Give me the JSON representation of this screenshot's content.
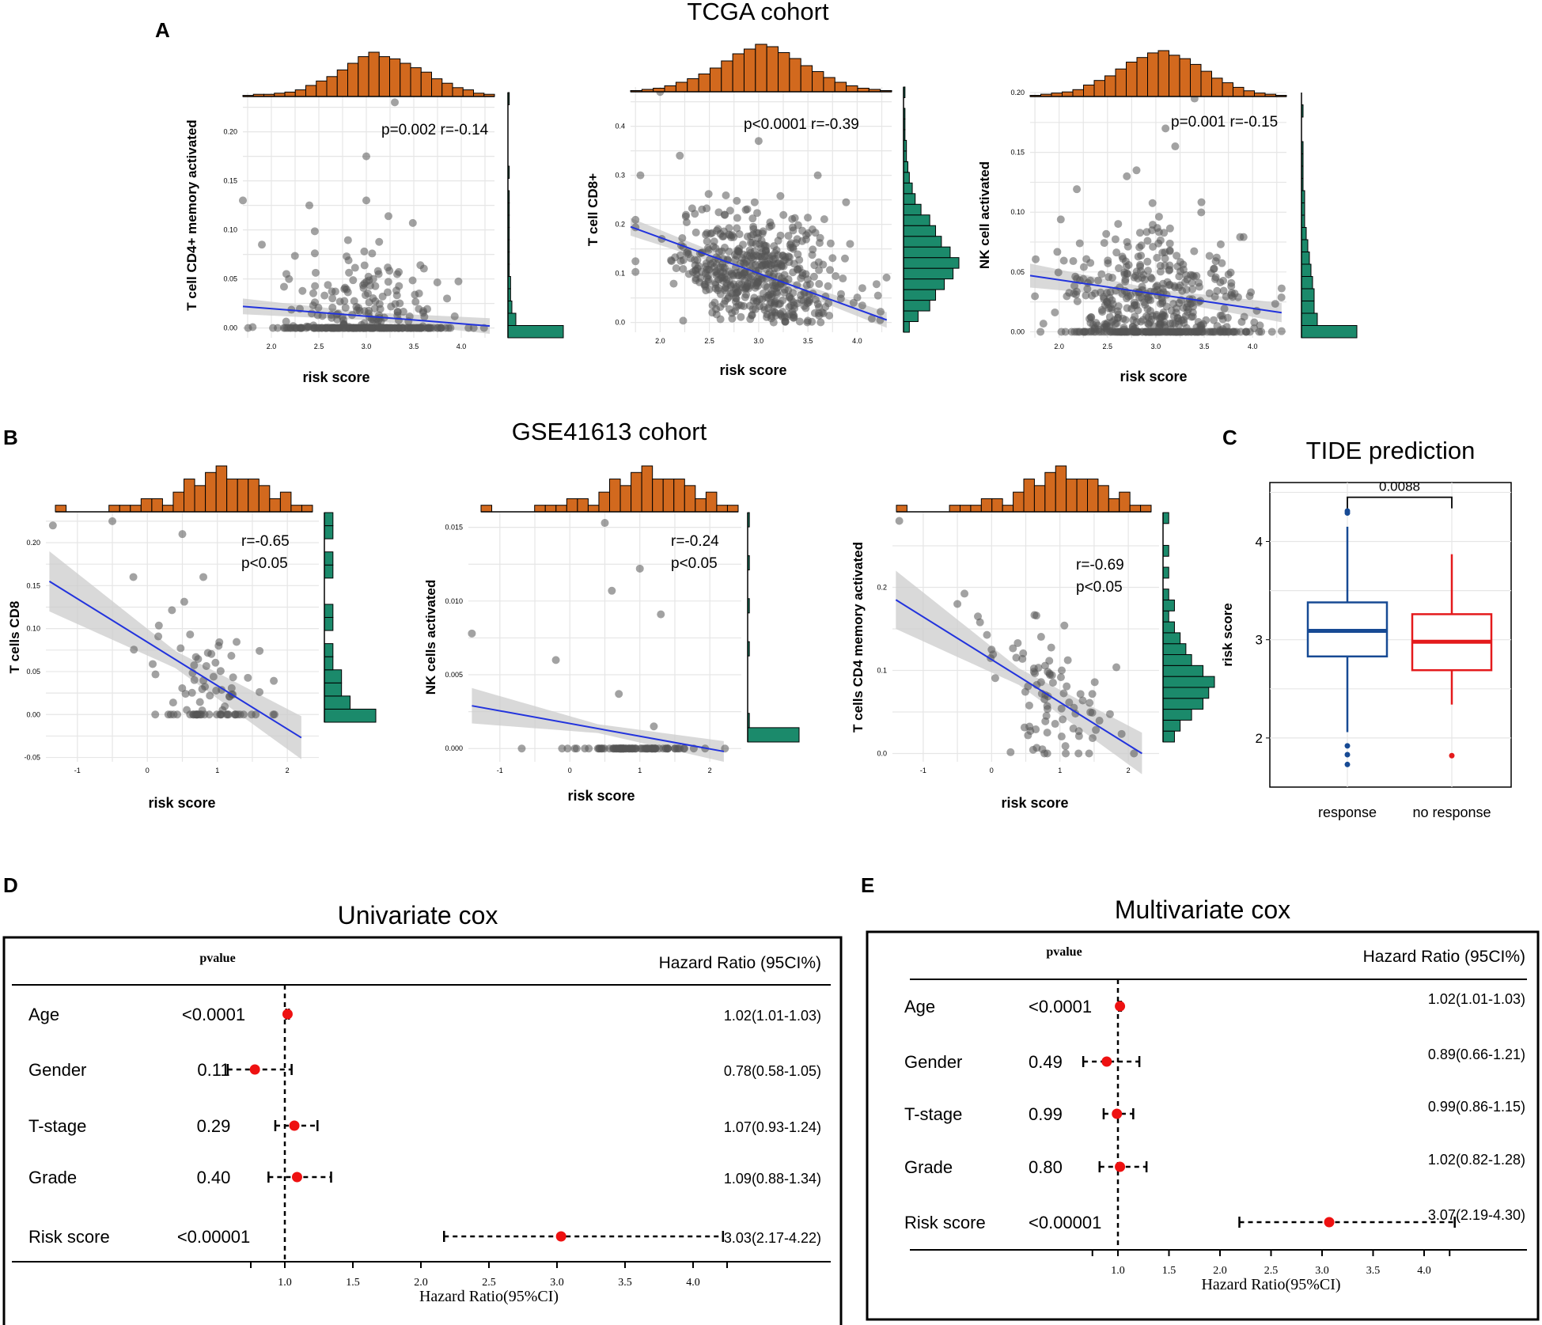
{
  "colors": {
    "hist_top": "#d2691e",
    "hist_right": "#1b8a6b",
    "point": "#555555",
    "fit": "#2233dd",
    "ci": "#cccccc",
    "resp": "#174a94",
    "noresp": "#e41a1c",
    "forest_pt": "#ee1111"
  },
  "panels": {
    "A": "A",
    "B": "B",
    "C": "C",
    "D": "D",
    "E": "E"
  },
  "titles": {
    "tcga": "TCGA cohort",
    "gse": "GSE41613 cohort",
    "tide": "TIDE prediction",
    "uni": "Univariate cox",
    "multi": "Multivariate cox"
  },
  "chart_data": [
    {
      "id": "a1",
      "type": "scatter",
      "cohort": "TCGA",
      "xlabel": "risk score",
      "ylabel": "T cell CD4+ memory activated",
      "stat": "p=0.002  r=-0.14",
      "xlim": [
        1.7,
        4.35
      ],
      "ylim": [
        -0.01,
        0.24
      ],
      "xticks": [
        "2.0",
        "2.5",
        "3.0",
        "3.5",
        "4.0"
      ],
      "yticks": [
        "0.00",
        "0.05",
        "0.10",
        "0.15",
        "0.20"
      ],
      "fit": [
        [
          1.7,
          0.022
        ],
        [
          4.3,
          0.002
        ]
      ],
      "ci_half": [
        0.008,
        0.004,
        0.008
      ],
      "n": 320,
      "xcenter": 3.0,
      "xspread": 0.45,
      "ybase": 0.0,
      "ynoise": 0.04,
      "zero_frac": 0.55,
      "outliers": [
        [
          1.7,
          0.13
        ],
        [
          1.9,
          0.085
        ],
        [
          2.4,
          0.125
        ],
        [
          3.0,
          0.175
        ],
        [
          3.3,
          0.23
        ],
        [
          3.0,
          0.13
        ]
      ],
      "top_hist": [
        1,
        2,
        2,
        3,
        4,
        6,
        10,
        14,
        18,
        24,
        30,
        36,
        40,
        36,
        34,
        30,
        26,
        22,
        16,
        12,
        8,
        6,
        3,
        2
      ],
      "right_hist": [
        42,
        6,
        3,
        2,
        2,
        1,
        1,
        1,
        1,
        1,
        1,
        1,
        0,
        1,
        0,
        0,
        0,
        0,
        0,
        1
      ]
    },
    {
      "id": "a2",
      "type": "scatter",
      "cohort": "TCGA",
      "xlabel": "risk score",
      "ylabel": "T cell CD8+",
      "stat": "p<0.0001  r=-0.39",
      "xlim": [
        1.7,
        4.35
      ],
      "ylim": [
        -0.02,
        0.48
      ],
      "xticks": [
        "2.0",
        "2.5",
        "3.0",
        "3.5",
        "4.0"
      ],
      "yticks": [
        "0.0",
        "0.1",
        "0.2",
        "0.3",
        "0.4"
      ],
      "fit": [
        [
          1.7,
          0.195
        ],
        [
          4.3,
          0.005
        ]
      ],
      "ci_half": [
        0.018,
        0.007,
        0.016
      ],
      "n": 520,
      "xcenter": 3.0,
      "xspread": 0.42,
      "ybase": 0.1,
      "ynoise": 0.065,
      "zero_frac": 0.0,
      "outliers": [
        [
          2.0,
          0.47
        ],
        [
          2.2,
          0.34
        ],
        [
          1.8,
          0.3
        ],
        [
          3.0,
          0.37
        ],
        [
          3.6,
          0.3
        ]
      ],
      "top_hist": [
        1,
        2,
        3,
        5,
        8,
        11,
        15,
        20,
        26,
        32,
        36,
        40,
        38,
        33,
        28,
        22,
        17,
        12,
        8,
        5,
        3,
        2,
        1
      ],
      "right_hist": [
        4,
        10,
        18,
        22,
        28,
        34,
        38,
        32,
        26,
        22,
        18,
        12,
        8,
        6,
        4,
        3,
        2,
        2,
        1,
        1,
        1,
        0,
        1
      ]
    },
    {
      "id": "a3",
      "type": "scatter",
      "cohort": "TCGA",
      "xlabel": "risk score",
      "ylabel": "NK cell activated",
      "stat": "p=0.001  r=-0.15",
      "xlim": [
        1.7,
        4.35
      ],
      "ylim": [
        -0.005,
        0.2
      ],
      "xticks": [
        "2.0",
        "2.5",
        "3.0",
        "3.5",
        "4.0"
      ],
      "yticks": [
        "0.00",
        "0.05",
        "0.10",
        "0.15",
        "0.20"
      ],
      "fit": [
        [
          1.7,
          0.047
        ],
        [
          4.3,
          0.016
        ]
      ],
      "ci_half": [
        0.01,
        0.004,
        0.008
      ],
      "n": 520,
      "xcenter": 3.0,
      "xspread": 0.45,
      "ybase": 0.025,
      "ynoise": 0.03,
      "zero_frac": 0.3,
      "outliers": [
        [
          3.4,
          0.195
        ],
        [
          3.1,
          0.17
        ],
        [
          3.2,
          0.155
        ],
        [
          2.8,
          0.135
        ],
        [
          2.7,
          0.13
        ]
      ],
      "top_hist": [
        1,
        2,
        3,
        4,
        6,
        10,
        14,
        18,
        24,
        30,
        34,
        38,
        40,
        36,
        33,
        28,
        22,
        16,
        12,
        8,
        5,
        3,
        2,
        1
      ],
      "right_hist": [
        35,
        10,
        8,
        8,
        7,
        6,
        5,
        4,
        3,
        2,
        2,
        2,
        1,
        1,
        1,
        1,
        0,
        0,
        1,
        0
      ]
    },
    {
      "id": "b1",
      "type": "scatter",
      "cohort": "GSE41613",
      "xlabel": "risk score",
      "ylabel": "T cells CD8",
      "stat": "r=-0.65\np<0.05",
      "xlim": [
        -1.45,
        2.45
      ],
      "ylim": [
        -0.055,
        0.235
      ],
      "xticks": [
        "-1",
        "0",
        "1",
        "2"
      ],
      "yticks": [
        "-0.05",
        "0.00",
        "0.05",
        "0.10",
        "0.15",
        "0.20"
      ],
      "fit": [
        [
          -1.4,
          0.155
        ],
        [
          2.2,
          -0.027
        ]
      ],
      "ci_half": [
        0.035,
        0.01,
        0.025
      ],
      "n": 85,
      "xcenter": 0.9,
      "xspread": 0.45,
      "ybase": 0.02,
      "ynoise": 0.03,
      "zero_frac": 0.35,
      "slope": -0.045,
      "outliers": [
        [
          -1.35,
          0.22
        ],
        [
          -0.5,
          0.225
        ],
        [
          0.5,
          0.21
        ],
        [
          -0.2,
          0.16
        ],
        [
          0.8,
          0.16
        ]
      ],
      "top_hist": [
        1,
        0,
        0,
        0,
        0,
        1,
        1,
        1,
        2,
        2,
        1,
        3,
        5,
        4,
        6,
        7,
        5,
        5,
        5,
        4,
        2,
        3,
        1,
        1
      ],
      "right_hist": [
        6,
        3,
        2,
        2,
        1,
        1,
        0,
        1,
        1,
        0,
        0,
        1,
        1,
        0,
        1,
        1
      ]
    },
    {
      "id": "b2",
      "type": "scatter",
      "cohort": "GSE41613",
      "xlabel": "risk score",
      "ylabel": "NK cells activated",
      "stat": "r=-0.24\np<0.05",
      "xlim": [
        -1.45,
        2.45
      ],
      "ylim": [
        -0.0009,
        0.016
      ],
      "xticks": [
        "-1",
        "0",
        "1",
        "2"
      ],
      "yticks": [
        "0.000",
        "0.005",
        "0.010",
        "0.015"
      ],
      "fit": [
        [
          -1.4,
          0.0029
        ],
        [
          2.2,
          -0.0002
        ]
      ],
      "ci_half": [
        0.0012,
        0.0003,
        0.0007
      ],
      "n": 90,
      "xcenter": 0.9,
      "xspread": 0.45,
      "ybase": 0.0,
      "ynoise": 0.0,
      "zero_frac": 1.0,
      "outliers": [
        [
          0.5,
          0.0153
        ],
        [
          1.0,
          0.0122
        ],
        [
          0.6,
          0.0107
        ],
        [
          1.3,
          0.0091
        ],
        [
          -1.4,
          0.0078
        ],
        [
          -0.2,
          0.006
        ],
        [
          0.7,
          0.0037
        ],
        [
          1.2,
          0.0015
        ]
      ],
      "top_hist": [
        1,
        0,
        0,
        0,
        0,
        1,
        1,
        1,
        2,
        2,
        1,
        3,
        5,
        4,
        6,
        7,
        5,
        5,
        5,
        4,
        2,
        3,
        1,
        1
      ],
      "right_hist": [
        30,
        1,
        0,
        0,
        0,
        0,
        1,
        0,
        0,
        1,
        0,
        0,
        1,
        0,
        0,
        1
      ]
    },
    {
      "id": "b3",
      "type": "scatter",
      "cohort": "GSE41613",
      "xlabel": "risk score",
      "ylabel": "T cells CD4 memory activated",
      "stat": "r=-0.69\np<0.05",
      "xlim": [
        -1.45,
        2.45
      ],
      "ylim": [
        -0.01,
        0.29
      ],
      "xticks": [
        "-1",
        "0",
        "1",
        "2"
      ],
      "yticks": [
        "0.0",
        "0.1",
        "0.2"
      ],
      "fit": [
        [
          -1.4,
          0.185
        ],
        [
          2.2,
          0.0
        ]
      ],
      "ci_half": [
        0.035,
        0.01,
        0.025
      ],
      "n": 85,
      "xcenter": 0.9,
      "xspread": 0.45,
      "ybase": 0.06,
      "ynoise": 0.04,
      "zero_frac": 0.0,
      "slope": -0.05,
      "outliers": [
        [
          -1.35,
          0.28
        ],
        [
          -0.5,
          0.18
        ],
        [
          -0.2,
          0.165
        ],
        [
          0.0,
          0.125
        ]
      ],
      "top_hist": [
        1,
        0,
        0,
        0,
        0,
        1,
        1,
        1,
        2,
        2,
        1,
        3,
        5,
        4,
        6,
        7,
        5,
        5,
        5,
        4,
        2,
        3,
        1,
        1
      ],
      "right_hist": [
        2,
        3,
        5,
        7,
        8,
        9,
        7,
        5,
        4,
        3,
        2,
        1,
        2,
        1,
        0,
        1,
        0,
        1,
        0,
        0,
        1
      ]
    },
    {
      "id": "c",
      "type": "box",
      "title": "TIDE prediction",
      "ylabel": "risk score",
      "categories": [
        "response",
        "no response"
      ],
      "ylim": [
        1.5,
        4.6
      ],
      "yticks": [
        "2",
        "3",
        "4"
      ],
      "pvalue": "0.0088",
      "boxes": [
        {
          "name": "response",
          "min": 2.06,
          "q1": 2.83,
          "median": 3.09,
          "q3": 3.38,
          "max": 4.15,
          "outliers": [
            4.31,
            4.29,
            1.92,
            1.83,
            1.73
          ]
        },
        {
          "name": "no response",
          "min": 2.34,
          "q1": 2.69,
          "median": 2.98,
          "q3": 3.26,
          "max": 3.87,
          "outliers": [
            1.82
          ]
        }
      ]
    },
    {
      "id": "d",
      "type": "forest",
      "title": "Univariate cox",
      "xlabel": "Hazard Ratio(95%CI)",
      "col_p": "pvalue",
      "col_hr": "Hazard Ratio (95CI%)",
      "xlim": [
        0.7,
        4.3
      ],
      "xticks": [
        "1.0",
        "1.5",
        "2.0",
        "2.5",
        "3.0",
        "3.5",
        "4.0"
      ],
      "rows": [
        {
          "label": "Age",
          "p": "<0.0001",
          "hr": 1.02,
          "lo": 1.01,
          "hi": 1.03,
          "text": "1.02(1.01-1.03)"
        },
        {
          "label": "Gender",
          "p": "0.11",
          "hr": 0.78,
          "lo": 0.58,
          "hi": 1.05,
          "text": "0.78(0.58-1.05)"
        },
        {
          "label": "T-stage",
          "p": "0.29",
          "hr": 1.07,
          "lo": 0.93,
          "hi": 1.24,
          "text": "1.07(0.93-1.24)"
        },
        {
          "label": "Grade",
          "p": "0.40",
          "hr": 1.09,
          "lo": 0.88,
          "hi": 1.34,
          "text": "1.09(0.88-1.34)"
        },
        {
          "label": "Risk score",
          "p": "<0.00001",
          "hr": 3.03,
          "lo": 2.17,
          "hi": 4.22,
          "text": "3.03(2.17-4.22)"
        }
      ]
    },
    {
      "id": "e",
      "type": "forest",
      "title": "Multivariate cox",
      "xlabel": "Hazard Ratio(95%CI)",
      "col_p": "pvalue",
      "col_hr": "Hazard Ratio (95CI%)",
      "xlim": [
        0.7,
        4.3
      ],
      "xticks": [
        "1.0",
        "1.5",
        "2.0",
        "2.5",
        "3.0",
        "3.5",
        "4.0"
      ],
      "rows": [
        {
          "label": "Age",
          "p": "<0.0001",
          "hr": 1.02,
          "lo": 1.01,
          "hi": 1.03,
          "text": "1.02(1.01-1.03)"
        },
        {
          "label": "Gender",
          "p": "0.49",
          "hr": 0.89,
          "lo": 0.66,
          "hi": 1.21,
          "text": "0.89(0.66-1.21)"
        },
        {
          "label": "T-stage",
          "p": "0.99",
          "hr": 0.99,
          "lo": 0.86,
          "hi": 1.15,
          "text": "0.99(0.86-1.15)"
        },
        {
          "label": "Grade",
          "p": "0.80",
          "hr": 1.02,
          "lo": 0.82,
          "hi": 1.28,
          "text": "1.02(0.82-1.28)"
        },
        {
          "label": "Risk score",
          "p": "<0.00001",
          "hr": 3.07,
          "lo": 2.19,
          "hi": 4.3,
          "text": "3.07(2.19-4.30)"
        }
      ]
    }
  ]
}
